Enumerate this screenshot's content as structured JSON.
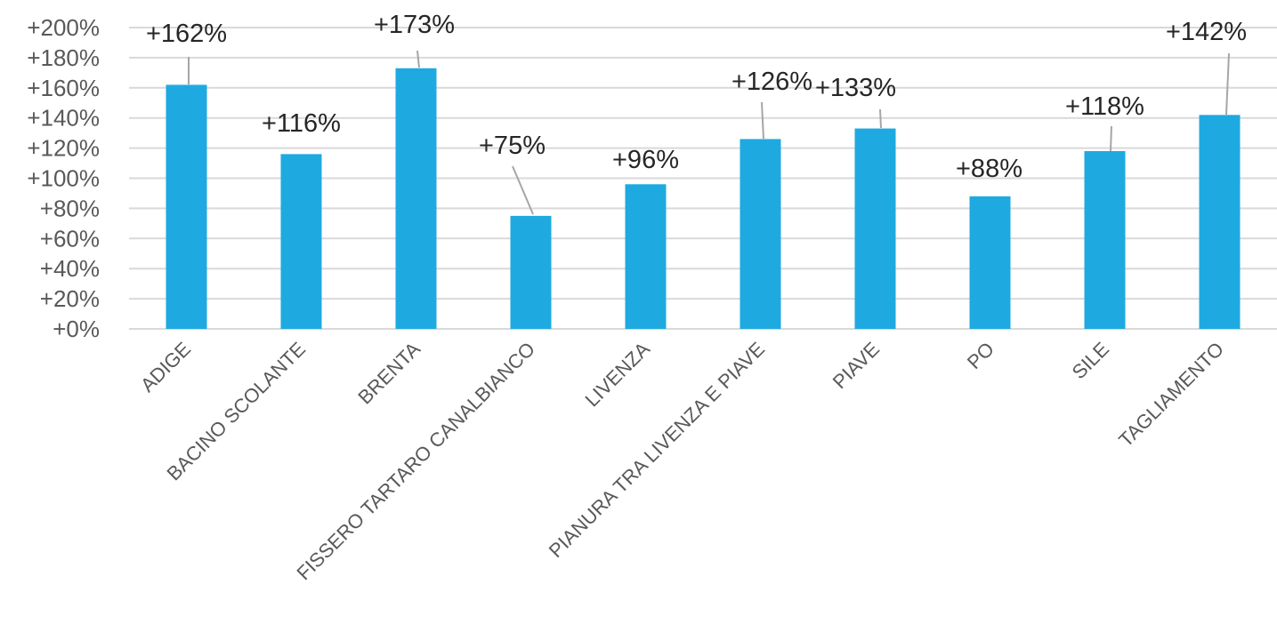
{
  "chart_data": {
    "type": "bar",
    "categories": [
      "ADIGE",
      "BACINO SCOLANTE",
      "BRENTA",
      "FISSERO TARTARO CANALBIANCO",
      "LIVENZA",
      "PIANURA TRA LIVENZA E PIAVE",
      "PIAVE",
      "PO",
      "SILE",
      "TAGLIAMENTO"
    ],
    "values": [
      162,
      116,
      173,
      75,
      96,
      126,
      133,
      88,
      118,
      142
    ],
    "data_labels": [
      "+162%",
      "+116%",
      "+173%",
      "+75%",
      "+96%",
      "+126%",
      "+133%",
      "+88%",
      "+118%",
      "+142%"
    ],
    "yticks": [
      "+0%",
      "+20%",
      "+40%",
      "+60%",
      "+80%",
      "+100%",
      "+120%",
      "+140%",
      "+160%",
      "+180%",
      "+200%"
    ],
    "ylim": [
      0,
      200
    ],
    "grid": true,
    "legend": "none",
    "bar_color": "#1eaae1",
    "title": "",
    "xlabel": "",
    "ylabel": ""
  }
}
